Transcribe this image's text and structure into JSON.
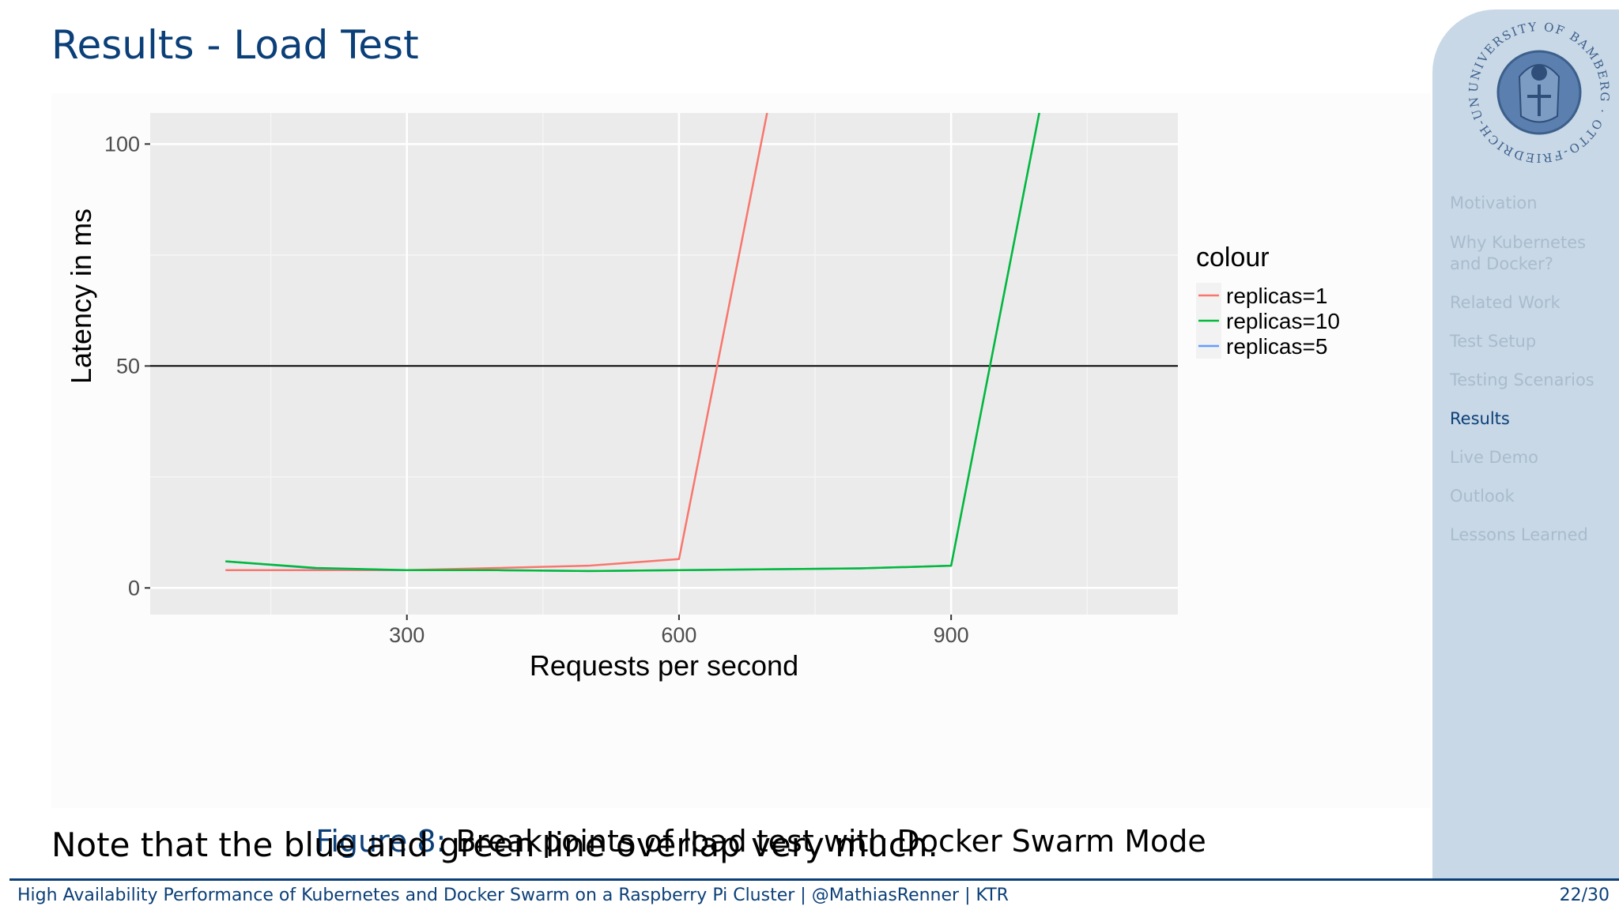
{
  "slide": {
    "title": "Results - Load Test",
    "note": "Note that the blue and green line overlap very much."
  },
  "caption": {
    "label": "Figure 8:",
    "text": "Breakpoints of load test with Docker Swarm Mode"
  },
  "chart_data": {
    "type": "line",
    "xlabel": "Requests per second",
    "ylabel": "Latency in ms",
    "xlim": [
      17,
      1150
    ],
    "ylim": [
      -6,
      107
    ],
    "x_ticks": [
      300,
      600,
      900
    ],
    "y_ticks": [
      0,
      50,
      100
    ],
    "grid": true,
    "hline": {
      "y": 50,
      "color": "#000000"
    },
    "legend": {
      "title": "colour",
      "position": "right",
      "entries": [
        "replicas=1",
        "replicas=10",
        "replicas=5"
      ]
    },
    "series": [
      {
        "name": "replicas=1",
        "color": "#f8766d",
        "x": [
          100,
          200,
          300,
          400,
          500,
          600,
          700
        ],
        "y": [
          4,
          4,
          4,
          4.5,
          5,
          6.5,
          110
        ]
      },
      {
        "name": "replicas=10",
        "color": "#00ba38",
        "x": [
          100,
          200,
          300,
          400,
          500,
          600,
          700,
          800,
          900,
          1000
        ],
        "y": [
          6,
          4.5,
          4,
          4,
          3.8,
          4,
          4.2,
          4.4,
          5,
          110
        ]
      },
      {
        "name": "replicas=5",
        "color": "#619cff",
        "x": [
          100,
          200,
          300,
          400,
          500,
          600,
          700,
          800,
          900,
          1000
        ],
        "y": [
          6,
          4.4,
          4,
          4,
          3.8,
          4,
          4.2,
          4.4,
          5,
          110
        ]
      }
    ]
  },
  "sidebar": {
    "seal_text": "UNIVERSITY OF BAMBERG · OTTO-FRIEDRICH-UNIVERSITÄT BAMBERG",
    "items": [
      {
        "label": "Motivation",
        "active": false
      },
      {
        "label": "Why Kubernetes and Docker?",
        "active": false
      },
      {
        "label": "Related Work",
        "active": false
      },
      {
        "label": "Test Setup",
        "active": false
      },
      {
        "label": "Testing Scenarios",
        "active": false
      },
      {
        "label": "Results",
        "active": true
      },
      {
        "label": "Live Demo",
        "active": false
      },
      {
        "label": "Outlook",
        "active": false
      },
      {
        "label": "Lessons Learned",
        "active": false
      }
    ]
  },
  "footer": {
    "text": "High Availability Performance of Kubernetes and Docker Swarm on a Raspberry Pi Cluster | @MathiasRenner | KTR",
    "page": "22/30"
  },
  "colors": {
    "accent": "#0b3f78",
    "panel": "#ebebeb",
    "sidebar": "#c8d8e6"
  }
}
